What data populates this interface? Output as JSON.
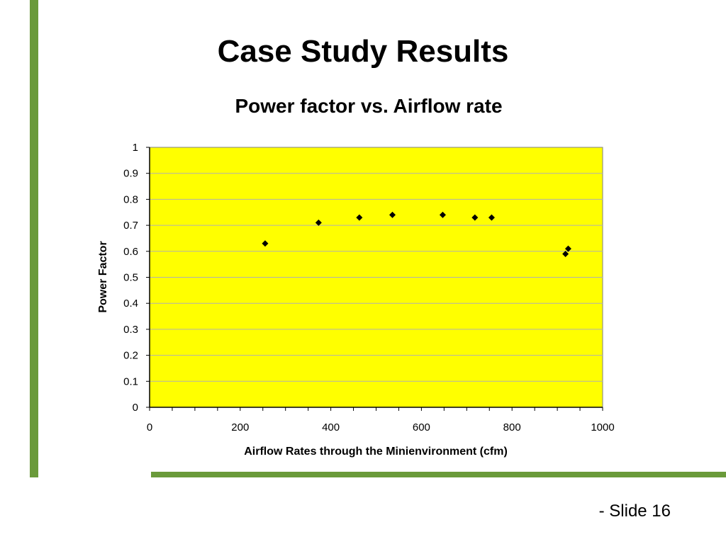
{
  "slide": {
    "title": "Case Study Results",
    "slide_number": "- Slide 16",
    "accent_color": "#6a9a3a"
  },
  "chart_data": {
    "type": "scatter",
    "title": "Power factor vs. Airflow rate",
    "xlabel": "Airflow Rates through the Minienvironment (cfm)",
    "ylabel": "Power Factor",
    "xlim": [
      0,
      1000
    ],
    "ylim": [
      0,
      1
    ],
    "x_ticks": [
      "0",
      "200",
      "400",
      "600",
      "800",
      "1000"
    ],
    "y_ticks": [
      "0",
      "0.1",
      "0.2",
      "0.3",
      "0.4",
      "0.5",
      "0.6",
      "0.7",
      "0.8",
      "0.9",
      "1"
    ],
    "plot_background": "#ffff00",
    "marker_color": "#000000",
    "grid": true,
    "legend": false,
    "points": [
      {
        "x": 255,
        "y": 0.63
      },
      {
        "x": 373,
        "y": 0.71
      },
      {
        "x": 463,
        "y": 0.73
      },
      {
        "x": 536,
        "y": 0.74
      },
      {
        "x": 647,
        "y": 0.74
      },
      {
        "x": 718,
        "y": 0.73
      },
      {
        "x": 755,
        "y": 0.73
      },
      {
        "x": 918,
        "y": 0.59
      },
      {
        "x": 924,
        "y": 0.61
      }
    ]
  }
}
